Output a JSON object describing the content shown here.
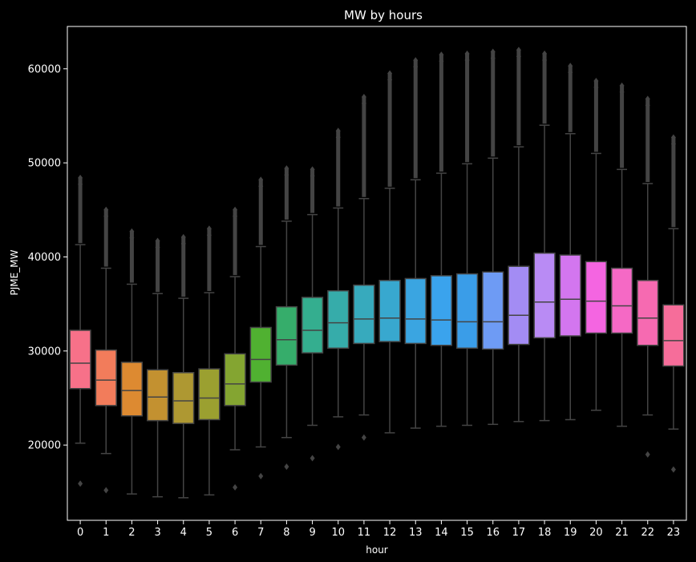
{
  "chart_data": {
    "type": "boxplot",
    "title": "MW by hours",
    "xlabel": "hour",
    "ylabel": "PJME_MW",
    "categories": [
      "0",
      "1",
      "2",
      "3",
      "4",
      "5",
      "6",
      "7",
      "8",
      "9",
      "10",
      "11",
      "12",
      "13",
      "14",
      "15",
      "16",
      "17",
      "18",
      "19",
      "20",
      "21",
      "22",
      "23"
    ],
    "ylim": [
      12000,
      64500
    ],
    "yticks": [
      20000,
      30000,
      40000,
      50000,
      60000
    ],
    "grid": false,
    "background": "#000000",
    "colors": [
      "#f77189",
      "#f27c5b",
      "#dd8a31",
      "#c39130",
      "#ae9832",
      "#9ba030",
      "#84a531",
      "#50b131",
      "#36ad6b",
      "#34ae8f",
      "#36acaa",
      "#37aabd",
      "#38a8cf",
      "#3aa5e1",
      "#3aa3ed",
      "#3a9de8",
      "#6e9bf4",
      "#a38cf4",
      "#b98bf4",
      "#d376ef",
      "#f465e1",
      "#f569c5",
      "#f66ab1",
      "#f66d9a"
    ],
    "boxes": [
      {
        "q1": 26000,
        "median": 28700,
        "q3": 32200,
        "whislo": 20200,
        "whishi": 41300,
        "fliers_low": [
          15900
        ],
        "flier_top": 48400
      },
      {
        "q1": 24200,
        "median": 26900,
        "q3": 30100,
        "whislo": 19100,
        "whishi": 38800,
        "fliers_low": [
          15200
        ],
        "flier_top": 45000
      },
      {
        "q1": 23100,
        "median": 25800,
        "q3": 28800,
        "whislo": 14800,
        "whishi": 37100,
        "fliers_low": [],
        "flier_top": 42700
      },
      {
        "q1": 22600,
        "median": 25100,
        "q3": 28000,
        "whislo": 14500,
        "whishi": 36100,
        "fliers_low": [],
        "flier_top": 41700
      },
      {
        "q1": 22300,
        "median": 24700,
        "q3": 27700,
        "whislo": 14400,
        "whishi": 35600,
        "fliers_low": [],
        "flier_top": 42100
      },
      {
        "q1": 22700,
        "median": 25000,
        "q3": 28100,
        "whislo": 14700,
        "whishi": 36200,
        "fliers_low": [],
        "flier_top": 43000
      },
      {
        "q1": 24200,
        "median": 26500,
        "q3": 29700,
        "whislo": 19500,
        "whishi": 37900,
        "fliers_low": [
          15500
        ],
        "flier_top": 45000
      },
      {
        "q1": 26700,
        "median": 29100,
        "q3": 32500,
        "whislo": 19800,
        "whishi": 41100,
        "fliers_low": [
          16700
        ],
        "flier_top": 48200
      },
      {
        "q1": 28500,
        "median": 31200,
        "q3": 34700,
        "whislo": 20800,
        "whishi": 43800,
        "fliers_low": [
          17700
        ],
        "flier_top": 49400
      },
      {
        "q1": 29800,
        "median": 32200,
        "q3": 35700,
        "whislo": 22100,
        "whishi": 44500,
        "fliers_low": [
          18600
        ],
        "flier_top": 49300
      },
      {
        "q1": 30300,
        "median": 33000,
        "q3": 36400,
        "whislo": 23000,
        "whishi": 45200,
        "fliers_low": [
          19800
        ],
        "flier_top": 53400
      },
      {
        "q1": 30800,
        "median": 33400,
        "q3": 37000,
        "whislo": 23200,
        "whishi": 46200,
        "fliers_low": [
          20800
        ],
        "flier_top": 57000
      },
      {
        "q1": 31000,
        "median": 33500,
        "q3": 37500,
        "whislo": 21300,
        "whishi": 47300,
        "fliers_low": [],
        "flier_top": 59500
      },
      {
        "q1": 30800,
        "median": 33400,
        "q3": 37700,
        "whislo": 21800,
        "whishi": 48200,
        "fliers_low": [],
        "flier_top": 60900
      },
      {
        "q1": 30600,
        "median": 33300,
        "q3": 38000,
        "whislo": 22000,
        "whishi": 48900,
        "fliers_low": [],
        "flier_top": 61500
      },
      {
        "q1": 30300,
        "median": 33100,
        "q3": 38200,
        "whislo": 22100,
        "whishi": 49900,
        "fliers_low": [],
        "flier_top": 61600
      },
      {
        "q1": 30200,
        "median": 33100,
        "q3": 38400,
        "whislo": 22200,
        "whishi": 50500,
        "fliers_low": [],
        "flier_top": 61800
      },
      {
        "q1": 30700,
        "median": 33800,
        "q3": 39000,
        "whislo": 22500,
        "whishi": 51700,
        "fliers_low": [],
        "flier_top": 62000
      },
      {
        "q1": 31400,
        "median": 35200,
        "q3": 40400,
        "whislo": 22600,
        "whishi": 54000,
        "fliers_low": [],
        "flier_top": 61600
      },
      {
        "q1": 31600,
        "median": 35500,
        "q3": 40200,
        "whislo": 22700,
        "whishi": 53100,
        "fliers_low": [],
        "flier_top": 60300
      },
      {
        "q1": 31900,
        "median": 35300,
        "q3": 39500,
        "whislo": 23700,
        "whishi": 51000,
        "fliers_low": [],
        "flier_top": 58700
      },
      {
        "q1": 31900,
        "median": 34800,
        "q3": 38800,
        "whislo": 22000,
        "whishi": 49300,
        "fliers_low": [],
        "flier_top": 58200
      },
      {
        "q1": 30600,
        "median": 33500,
        "q3": 37500,
        "whislo": 23200,
        "whishi": 47800,
        "fliers_low": [
          19000
        ],
        "flier_top": 56800
      },
      {
        "q1": 28400,
        "median": 31100,
        "q3": 34900,
        "whislo": 21700,
        "whishi": 43000,
        "fliers_low": [
          17400
        ],
        "flier_top": 52700
      }
    ]
  }
}
